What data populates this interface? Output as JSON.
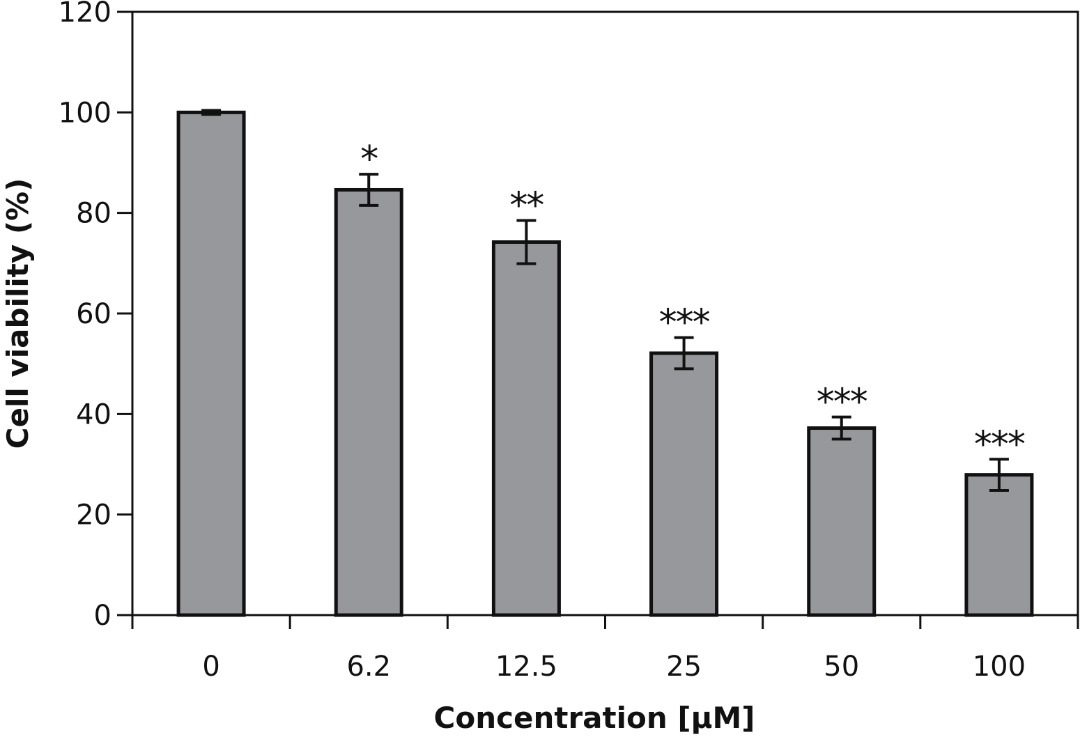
{
  "chart_data": {
    "type": "bar",
    "title": "",
    "xlabel": "Concentration [μM]",
    "ylabel": "Cell viability (%)",
    "ylim": [
      0,
      120
    ],
    "yticks": [
      0,
      20,
      40,
      60,
      80,
      100,
      120
    ],
    "categories": [
      "0",
      "6.2",
      "12.5",
      "25",
      "50",
      "100"
    ],
    "values": [
      100,
      84.6,
      74.2,
      52.1,
      37.2,
      27.9
    ],
    "errors": [
      0.4,
      3.1,
      4.3,
      3.1,
      2.2,
      3.1
    ],
    "significance": [
      "",
      "*",
      "**",
      "***",
      "***",
      "***"
    ],
    "grid": false,
    "colors": {
      "bar_fill": "#97989c",
      "bar_edge": "#111111"
    }
  }
}
